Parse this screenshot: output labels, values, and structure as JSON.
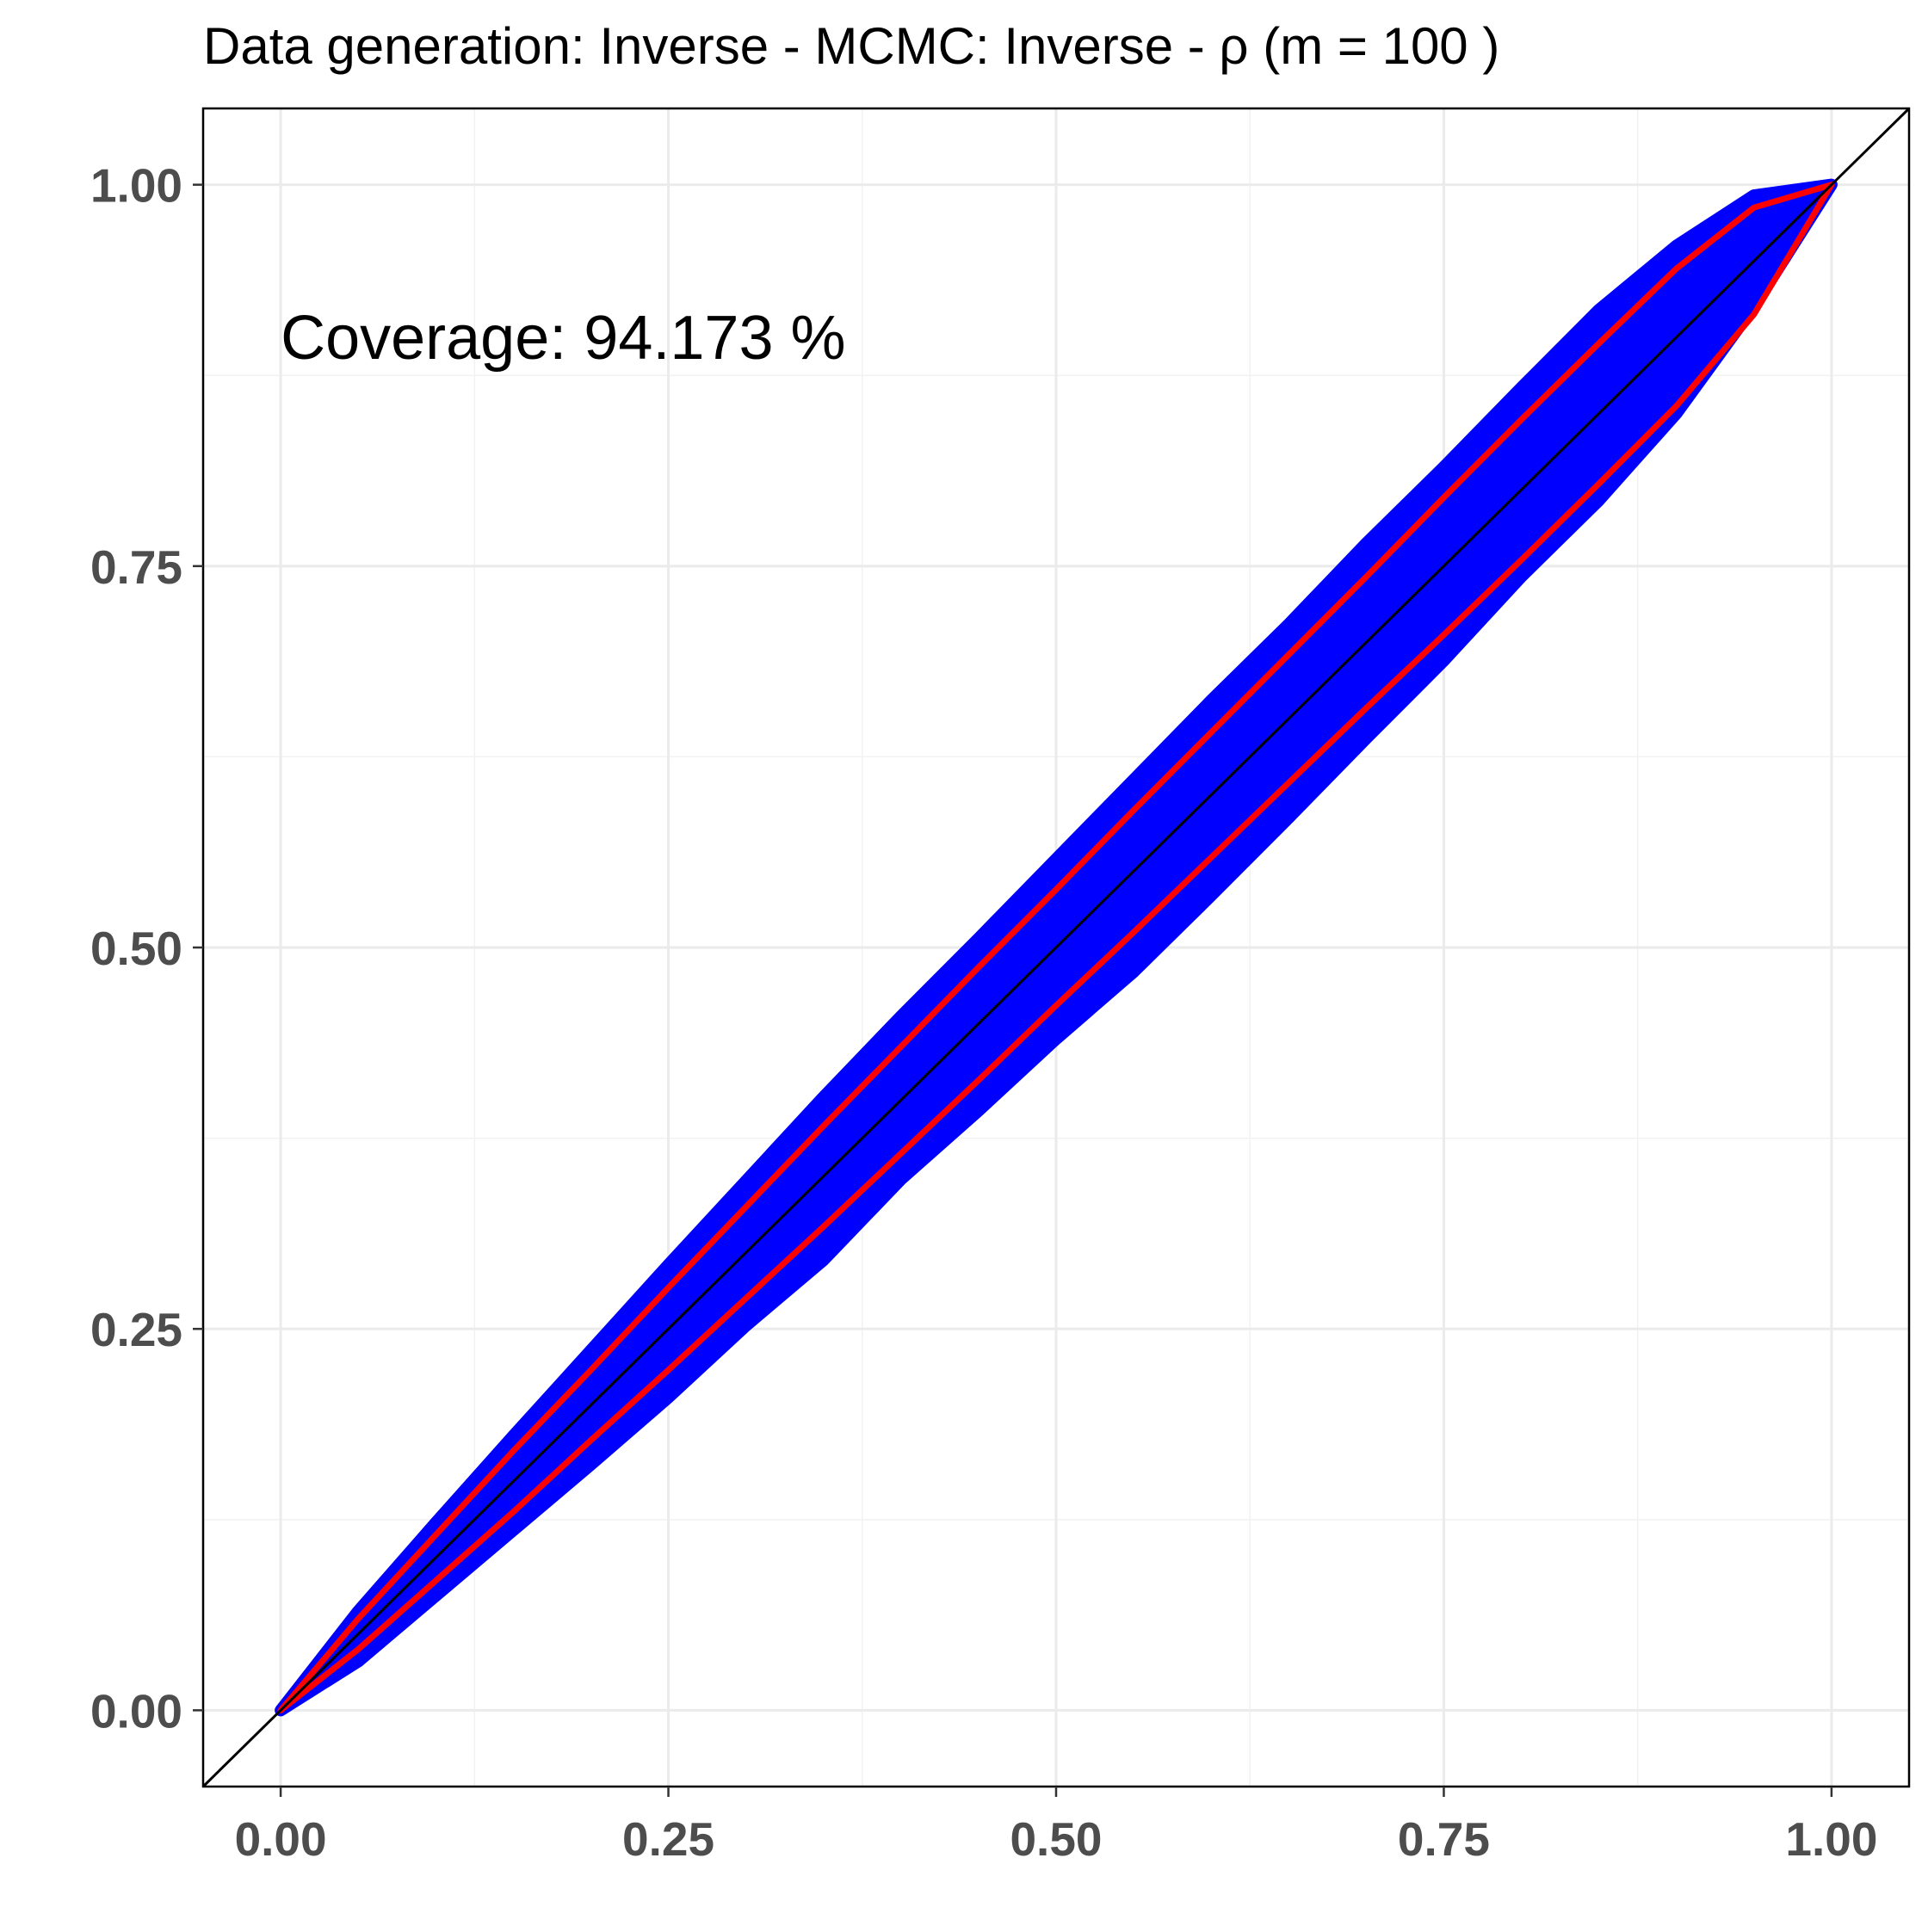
{
  "chart_data": {
    "type": "scatter",
    "title": "Data generation:  Inverse - MCMC:  Inverse  -  ρ  (m =  100 )",
    "xlabel": "",
    "ylabel": "",
    "xlim": [
      -0.05,
      1.05
    ],
    "ylim": [
      -0.05,
      1.05
    ],
    "x_ticks": [
      0,
      0.25,
      0.5,
      0.75,
      1
    ],
    "y_ticks": [
      0,
      0.25,
      0.5,
      0.75,
      1
    ],
    "x_tick_labels": [
      "0.00",
      "0.25",
      "0.50",
      "0.75",
      "1.00"
    ],
    "y_tick_labels": [
      "0.00",
      "0.25",
      "0.50",
      "0.75",
      "1.00"
    ],
    "grid": true,
    "annotation": {
      "text": "Coverage:  94.173 %",
      "x": 0.0,
      "y": 0.9
    },
    "reference_line": {
      "slope": 1,
      "intercept": 0,
      "color": "#000000"
    },
    "point_cloud": {
      "color": "#0000ff",
      "x": [
        0.0,
        0.05,
        0.1,
        0.15,
        0.2,
        0.25,
        0.3,
        0.35,
        0.4,
        0.45,
        0.5,
        0.55,
        0.6,
        0.65,
        0.7,
        0.75,
        0.8,
        0.85,
        0.9,
        0.95,
        1.0
      ],
      "upper": [
        0.0,
        0.065,
        0.123,
        0.18,
        0.236,
        0.292,
        0.347,
        0.402,
        0.455,
        0.506,
        0.558,
        0.61,
        0.662,
        0.712,
        0.765,
        0.815,
        0.867,
        0.918,
        0.96,
        0.993,
        1.0
      ],
      "lower": [
        0.0,
        0.032,
        0.075,
        0.118,
        0.161,
        0.205,
        0.252,
        0.295,
        0.348,
        0.393,
        0.44,
        0.484,
        0.534,
        0.585,
        0.637,
        0.688,
        0.743,
        0.793,
        0.85,
        0.92,
        1.0
      ]
    },
    "series": [
      {
        "color": "#ff0000",
        "x": [
          0.0,
          0.05,
          0.1,
          0.15,
          0.2,
          0.25,
          0.3,
          0.35,
          0.4,
          0.45,
          0.5,
          0.55,
          0.6,
          0.65,
          0.7,
          0.75,
          0.8,
          0.85,
          0.9,
          0.95,
          1.0
        ],
        "values": [
          0.0,
          0.06,
          0.115,
          0.17,
          0.223,
          0.277,
          0.33,
          0.383,
          0.435,
          0.487,
          0.538,
          0.59,
          0.641,
          0.692,
          0.743,
          0.795,
          0.846,
          0.896,
          0.945,
          0.985,
          1.0
        ]
      },
      {
        "color": "#ff0000",
        "x": [
          0.0,
          0.05,
          0.1,
          0.15,
          0.2,
          0.25,
          0.3,
          0.35,
          0.4,
          0.45,
          0.5,
          0.55,
          0.6,
          0.65,
          0.7,
          0.75,
          0.8,
          0.85,
          0.9,
          0.95,
          1.0
        ],
        "values": [
          0.0,
          0.04,
          0.085,
          0.13,
          0.177,
          0.223,
          0.27,
          0.317,
          0.365,
          0.413,
          0.462,
          0.51,
          0.559,
          0.608,
          0.657,
          0.705,
          0.754,
          0.804,
          0.855,
          0.915,
          1.0
        ]
      }
    ]
  }
}
